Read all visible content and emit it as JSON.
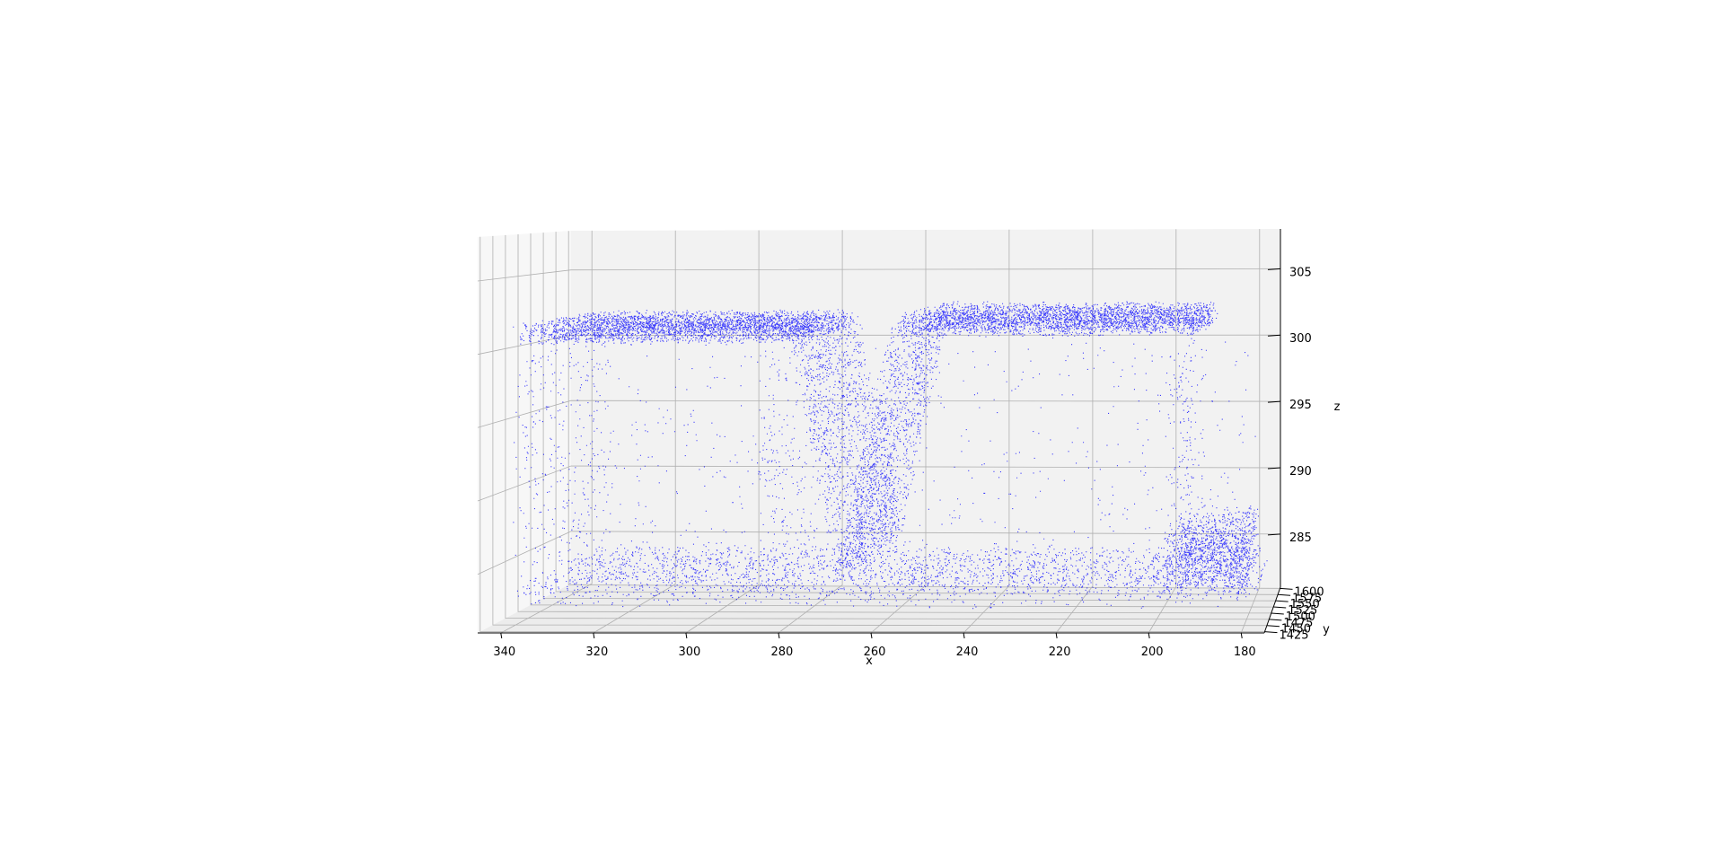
{
  "chart_data": {
    "type": "scatter",
    "projection": "3d",
    "title": "",
    "xlabel": "x",
    "ylabel": "y",
    "zlabel": "z",
    "x_ticks": [
      340,
      320,
      300,
      280,
      260,
      240,
      220,
      200,
      180
    ],
    "y_ticks": [
      1425,
      1450,
      1475,
      1500,
      1525,
      1550,
      1575,
      1600
    ],
    "y_tick_labels": [
      "1425",
      "1450",
      "1475",
      "1500",
      "1525",
      "1550",
      "1575",
      "1600"
    ],
    "z_ticks": [
      285,
      290,
      295,
      300,
      305
    ],
    "xlim": [
      175,
      345
    ],
    "ylim": [
      1420,
      1605
    ],
    "zlim": [
      281,
      308
    ],
    "grid": true,
    "marker_color": "#0000ff",
    "marker_size": "small",
    "features": [
      {
        "name": "plateau-left",
        "x_range": [
          277,
          338
        ],
        "z_range": [
          300.5,
          302
        ]
      },
      {
        "name": "plateau-right",
        "x_range": [
          190,
          255
        ],
        "z_range": [
          301,
          302.5
        ]
      },
      {
        "name": "v-groove",
        "x_min_at": 267,
        "z_min": 284.5,
        "z_top": 302
      },
      {
        "name": "floor",
        "x_range": [
          178,
          337
        ],
        "z_range": [
          282.5,
          285.5
        ]
      },
      {
        "name": "corner-block",
        "x_range": [
          180,
          198
        ],
        "z_range": [
          283,
          287
        ]
      }
    ]
  }
}
